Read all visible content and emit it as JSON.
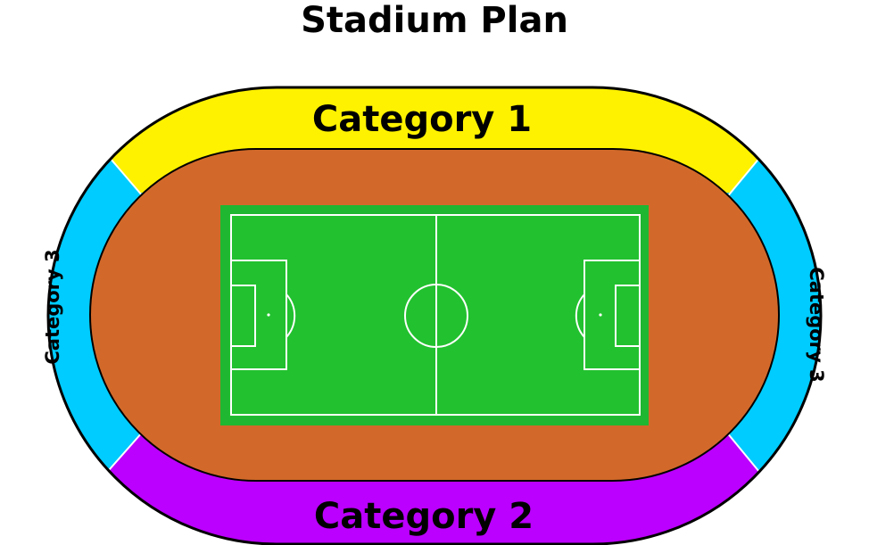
{
  "title": "Stadium Plan",
  "sections": {
    "north": {
      "label": "Category 1",
      "color": "#fff200"
    },
    "south": {
      "label": "Category 2",
      "color": "#bb00ff"
    },
    "west": {
      "label": "Category 3",
      "color": "#00ccff"
    },
    "east": {
      "label": "Category 3",
      "color": "#00ccff"
    }
  },
  "colors": {
    "track": "#d2692a",
    "pitch_outer": "#1fb731",
    "pitch_inner": "#22c12f",
    "pitch_lines": "#ffffff",
    "outline": "#000000"
  }
}
